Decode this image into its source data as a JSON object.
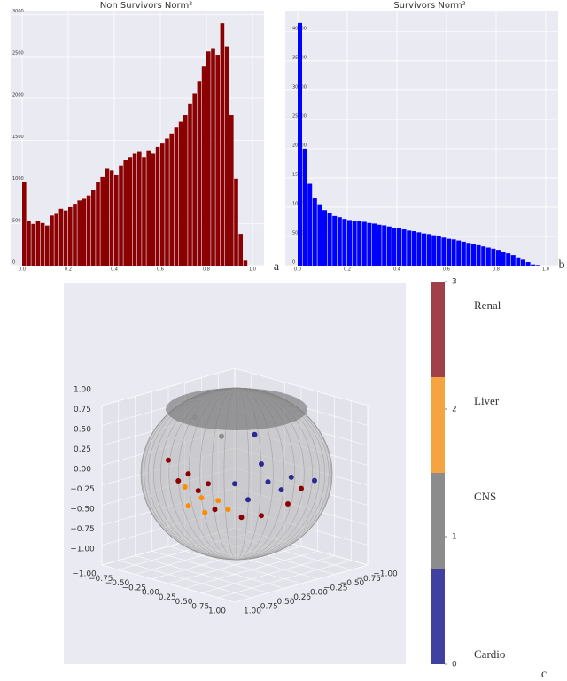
{
  "chart_data": [
    {
      "type": "histogram",
      "title": "Non Survivors Norm²",
      "panel_label": "a",
      "color": "#8b0000",
      "bins": [
        0,
        0.02,
        0.04,
        0.06,
        0.08,
        0.1,
        0.12,
        0.14,
        0.16,
        0.18,
        0.2,
        0.22,
        0.24,
        0.26,
        0.28,
        0.3,
        0.32,
        0.34,
        0.36,
        0.38,
        0.4,
        0.42,
        0.44,
        0.46,
        0.48,
        0.5,
        0.52,
        0.54,
        0.56,
        0.58,
        0.6,
        0.62,
        0.64,
        0.66,
        0.68,
        0.7,
        0.72,
        0.74,
        0.76,
        0.78,
        0.8,
        0.82,
        0.84,
        0.86,
        0.88,
        0.9,
        0.92,
        0.94,
        0.96,
        0.98
      ],
      "values": [
        1000,
        540,
        500,
        540,
        510,
        480,
        600,
        620,
        680,
        660,
        700,
        740,
        780,
        800,
        840,
        900,
        1000,
        1060,
        1160,
        1140,
        1080,
        1200,
        1260,
        1300,
        1340,
        1360,
        1300,
        1380,
        1340,
        1420,
        1460,
        1520,
        1580,
        1660,
        1720,
        1800,
        1940,
        2060,
        2200,
        2380,
        2560,
        2600,
        2520,
        2900,
        2620,
        1800,
        1040,
        380,
        60
      ],
      "xlim": [
        -0.05,
        1.05
      ],
      "ylim": [
        0,
        3050
      ],
      "xticks": [
        {
          "value": 0,
          "label": "0.0"
        },
        {
          "value": 0.2,
          "label": "0.2"
        },
        {
          "value": 0.4,
          "label": "0.4"
        },
        {
          "value": 0.6,
          "label": "0.6"
        },
        {
          "value": 0.8,
          "label": "0.8"
        },
        {
          "value": 1,
          "label": "1.0"
        }
      ],
      "yticks": [
        0,
        500,
        1000,
        1500,
        2000,
        2500,
        3000
      ],
      "grid": true
    },
    {
      "type": "histogram",
      "title": "Survivors Norm²",
      "panel_label": "b",
      "color": "#0000ff",
      "bins": [
        0,
        0.02,
        0.04,
        0.06,
        0.08,
        0.1,
        0.12,
        0.14,
        0.16,
        0.18,
        0.2,
        0.22,
        0.24,
        0.26,
        0.28,
        0.3,
        0.32,
        0.34,
        0.36,
        0.38,
        0.4,
        0.42,
        0.44,
        0.46,
        0.48,
        0.5,
        0.52,
        0.54,
        0.56,
        0.58,
        0.6,
        0.62,
        0.64,
        0.66,
        0.68,
        0.7,
        0.72,
        0.74,
        0.76,
        0.78,
        0.8,
        0.82,
        0.84,
        0.86,
        0.88,
        0.9,
        0.92,
        0.94,
        0.96,
        0.98
      ],
      "values": [
        41500,
        20000,
        14000,
        11500,
        10500,
        9500,
        9000,
        8500,
        8300,
        8000,
        7800,
        7700,
        7600,
        7500,
        7300,
        7200,
        7000,
        6900,
        6700,
        6500,
        6400,
        6200,
        6000,
        5900,
        5700,
        5500,
        5400,
        5200,
        5000,
        4800,
        4600,
        4500,
        4300,
        4100,
        3900,
        3700,
        3500,
        3300,
        3100,
        2900,
        2700,
        2400,
        2100,
        1800,
        1400,
        1000,
        600,
        200,
        100
      ],
      "xlim": [
        -0.05,
        1.05
      ],
      "ylim": [
        0,
        43600
      ],
      "xticks": [
        {
          "value": 0,
          "label": "0.0"
        },
        {
          "value": 0.2,
          "label": "0.2"
        },
        {
          "value": 0.4,
          "label": "0.4"
        },
        {
          "value": 0.6,
          "label": "0.6"
        },
        {
          "value": 0.8,
          "label": "0.8"
        },
        {
          "value": 1,
          "label": "1.0"
        }
      ],
      "yticks": [
        0,
        5000,
        10000,
        15000,
        20000,
        25000,
        30000,
        35000,
        40000
      ],
      "grid": true
    },
    {
      "type": "scatter3d",
      "panel_label": "c",
      "xlim": [
        -1,
        1
      ],
      "ylim": [
        -1,
        1
      ],
      "zlim": [
        -1,
        1
      ],
      "xticks": [
        {
          "value": -1,
          "label": "−1.00"
        },
        {
          "value": -0.75,
          "label": "−0.75"
        },
        {
          "value": -0.5,
          "label": "−0.50"
        },
        {
          "value": -0.25,
          "label": "−0.25"
        },
        {
          "value": 0,
          "label": "0.00"
        },
        {
          "value": 0.25,
          "label": "0.25"
        },
        {
          "value": 0.5,
          "label": "0.50"
        },
        {
          "value": 0.75,
          "label": "0.75"
        },
        {
          "value": 1,
          "label": "1.00"
        }
      ],
      "yticks": [
        {
          "value": -1,
          "label": "−1.00"
        },
        {
          "value": -0.75,
          "label": "−0.75"
        },
        {
          "value": -0.5,
          "label": "−0.50"
        },
        {
          "value": -0.25,
          "label": "−0.25"
        },
        {
          "value": 0,
          "label": "0.00"
        },
        {
          "value": 0.25,
          "label": "0.25"
        },
        {
          "value": 0.5,
          "label": "0.50"
        },
        {
          "value": 0.75,
          "label": "0.75"
        },
        {
          "value": 1,
          "label": "1.00"
        }
      ],
      "zticks": [
        {
          "value": -1,
          "label": "−1.00"
        },
        {
          "value": -0.75,
          "label": "−0.75"
        },
        {
          "value": -0.5,
          "label": "−0.50"
        },
        {
          "value": -0.25,
          "label": "−0.25"
        },
        {
          "value": 0,
          "label": "0.00"
        },
        {
          "value": 0.25,
          "label": "0.25"
        },
        {
          "value": 0.5,
          "label": "0.50"
        },
        {
          "value": 0.75,
          "label": "0.75"
        },
        {
          "value": 1,
          "label": "1.00"
        }
      ],
      "series": [
        {
          "name": "Cardio",
          "color": "#2b2b8f",
          "x": [
            0.8,
            0.9,
            0.7,
            0.85,
            0.9,
            0.6,
            0.7,
            0.5
          ],
          "y": [
            0.3,
            0.2,
            0.3,
            0.0,
            -0.3,
            0.6,
            0.5,
            0.2
          ],
          "z": [
            0.3,
            0.2,
            0.5,
            0.3,
            0.2,
            0.3,
            0.1,
            0.8
          ]
        },
        {
          "name": "CNS",
          "color": "#8c8c8c",
          "x": [
            0.3,
            -0.2
          ],
          "y": [
            0.5,
            0.4
          ],
          "z": [
            0.8,
            0.9
          ]
        },
        {
          "name": "Liver",
          "color": "#ff8c00",
          "x": [
            0.3,
            0.2,
            0.4,
            0.5,
            0.1,
            0.6
          ],
          "y": [
            0.8,
            0.9,
            0.85,
            0.75,
            0.85,
            0.7
          ],
          "z": [
            0.1,
            0.0,
            -0.05,
            0.1,
            0.2,
            0.0
          ]
        },
        {
          "name": "Renal",
          "color": "#8b0000",
          "x": [
            0.2,
            0.1,
            0.3,
            0.5,
            0.7,
            0.8,
            0.9,
            0.8,
            -0.1,
            0.4
          ],
          "y": [
            0.9,
            0.95,
            0.85,
            0.8,
            0.6,
            0.4,
            0.1,
            -0.2,
            0.9,
            0.8
          ],
          "z": [
            0.4,
            0.3,
            0.2,
            0.0,
            -0.1,
            -0.1,
            0.0,
            0.1,
            0.5,
            0.3
          ]
        }
      ],
      "colorbar": {
        "lim": [
          0,
          3
        ],
        "ticks": [
          0,
          1,
          2,
          3
        ],
        "colors": [
          "#4040a0",
          "#8c8c8c",
          "#f5a442",
          "#a04048"
        ]
      }
    }
  ]
}
